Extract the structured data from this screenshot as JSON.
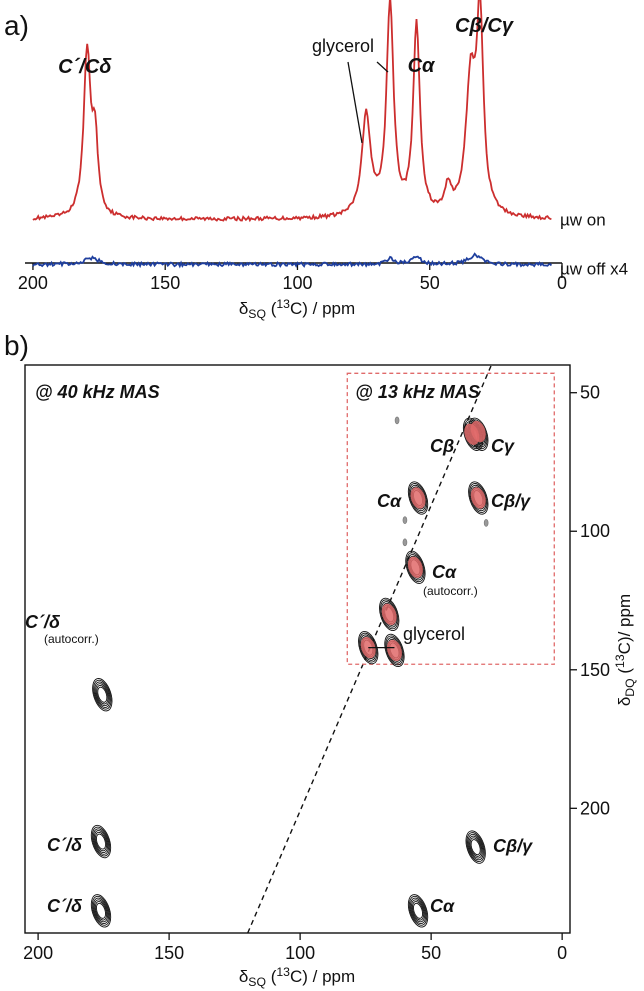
{
  "chart_data": [
    {
      "panel": "a)",
      "type": "line",
      "xlabel": "δSQ (13C) / ppm",
      "xlabel_parts": {
        "main": "δ",
        "sub": "SQ",
        "open": " (",
        "sup": "13",
        "rest": "C) / ppm"
      },
      "xlim": [
        203,
        0
      ],
      "xticks": [
        200,
        150,
        100,
        50,
        0
      ],
      "x_reversed": true,
      "series": [
        {
          "name": "µw on",
          "color": "#cc2e2e",
          "baseline": 0.04,
          "noise": 0.007,
          "peaks": [
            {
              "x": 179.5,
              "h": 0.62,
              "w": 1.6
            },
            {
              "x": 176.5,
              "h": 0.27,
              "w": 1.3
            },
            {
              "x": 74.0,
              "h": 0.38,
              "w": 2.0
            },
            {
              "x": 65.0,
              "h": 0.8,
              "w": 1.6
            },
            {
              "x": 55.0,
              "h": 0.72,
              "w": 1.5
            },
            {
              "x": 43.0,
              "h": 0.1,
              "w": 1.5
            },
            {
              "x": 34.5,
              "h": 0.5,
              "w": 2.2
            },
            {
              "x": 31.0,
              "h": 0.72,
              "w": 1.5
            }
          ]
        },
        {
          "name": "µw off x4",
          "color": "#1f3f9e",
          "baseline": -0.13,
          "noise": 0.007,
          "peaks": [
            {
              "x": 178.0,
              "h": 0.025,
              "w": 3.0
            },
            {
              "x": 65.0,
              "h": 0.02,
              "w": 2.0
            },
            {
              "x": 55.0,
              "h": 0.03,
              "w": 2.0
            },
            {
              "x": 33.0,
              "h": 0.035,
              "w": 3.0
            }
          ]
        }
      ],
      "annotations": [
        {
          "text": "C´/Cδ",
          "x": 180,
          "style": "bold-italic"
        },
        {
          "text": "glycerol",
          "x": 70,
          "style": "normal"
        },
        {
          "text": "Cα",
          "x": 54,
          "style": "bold-italic"
        },
        {
          "text": "Cβ/Cγ",
          "x": 33,
          "style": "bold-italic"
        }
      ]
    },
    {
      "panel": "b)",
      "type": "contour",
      "xlabel": "δSQ (13C) / ppm",
      "ylabel": "δDQ (13C)/ ppm",
      "ylabel_parts": {
        "main": "δ",
        "sub": "DQ",
        "open": " (",
        "sup": "13",
        "rest": "C)/ ppm"
      },
      "xlim": [
        205,
        -3
      ],
      "ylim": [
        40,
        245
      ],
      "xticks": [
        200,
        150,
        100,
        50,
        0
      ],
      "yticks": [
        50,
        100,
        150,
        200
      ],
      "diagonal": {
        "x1": 120,
        "y1": 245,
        "x2": 27,
        "y2": 40,
        "style": "dashed"
      },
      "conditions": [
        {
          "text": "@ 40 kHz MAS",
          "color": "#333333"
        },
        {
          "text": "@ 13 kHz MAS",
          "color": "#e06a6a",
          "box": {
            "x": [
              82,
              3
            ],
            "y": [
              43,
              148
            ]
          }
        }
      ],
      "peaks_40khz": [
        {
          "x": 175.5,
          "y": 159,
          "label": "C´/δ",
          "sublabel": "(autocorr.)"
        },
        {
          "x": 176,
          "y": 212,
          "label": "C´/δ"
        },
        {
          "x": 176,
          "y": 237,
          "label": "C´/δ"
        },
        {
          "x": 33,
          "y": 214,
          "label": "Cβ/γ"
        },
        {
          "x": 55,
          "y": 237,
          "label": "Cα"
        },
        {
          "x": 34,
          "y": 65,
          "label": "Cβ"
        },
        {
          "x": 32,
          "y": 65,
          "label": "Cγ"
        },
        {
          "x": 55,
          "y": 88,
          "label": "Cα"
        },
        {
          "x": 32,
          "y": 88,
          "label": "Cβ/γ"
        },
        {
          "x": 56,
          "y": 113,
          "label": "Cα",
          "sublabel": "(autocorr.)"
        },
        {
          "x": 66,
          "y": 130,
          "label": "glycerol"
        },
        {
          "x": 74,
          "y": 142
        },
        {
          "x": 64,
          "y": 143
        }
      ],
      "peaks_13khz": [
        {
          "x": 34.5,
          "y": 65
        },
        {
          "x": 32,
          "y": 64
        },
        {
          "x": 55,
          "y": 88
        },
        {
          "x": 32,
          "y": 88
        },
        {
          "x": 56,
          "y": 113
        },
        {
          "x": 66,
          "y": 130
        },
        {
          "x": 74,
          "y": 142
        },
        {
          "x": 64,
          "y": 143
        }
      ],
      "artifacts": [
        {
          "x": 63,
          "y": 60
        },
        {
          "x": 60,
          "y": 96
        },
        {
          "x": 29,
          "y": 97
        },
        {
          "x": 60,
          "y": 104
        }
      ]
    }
  ]
}
